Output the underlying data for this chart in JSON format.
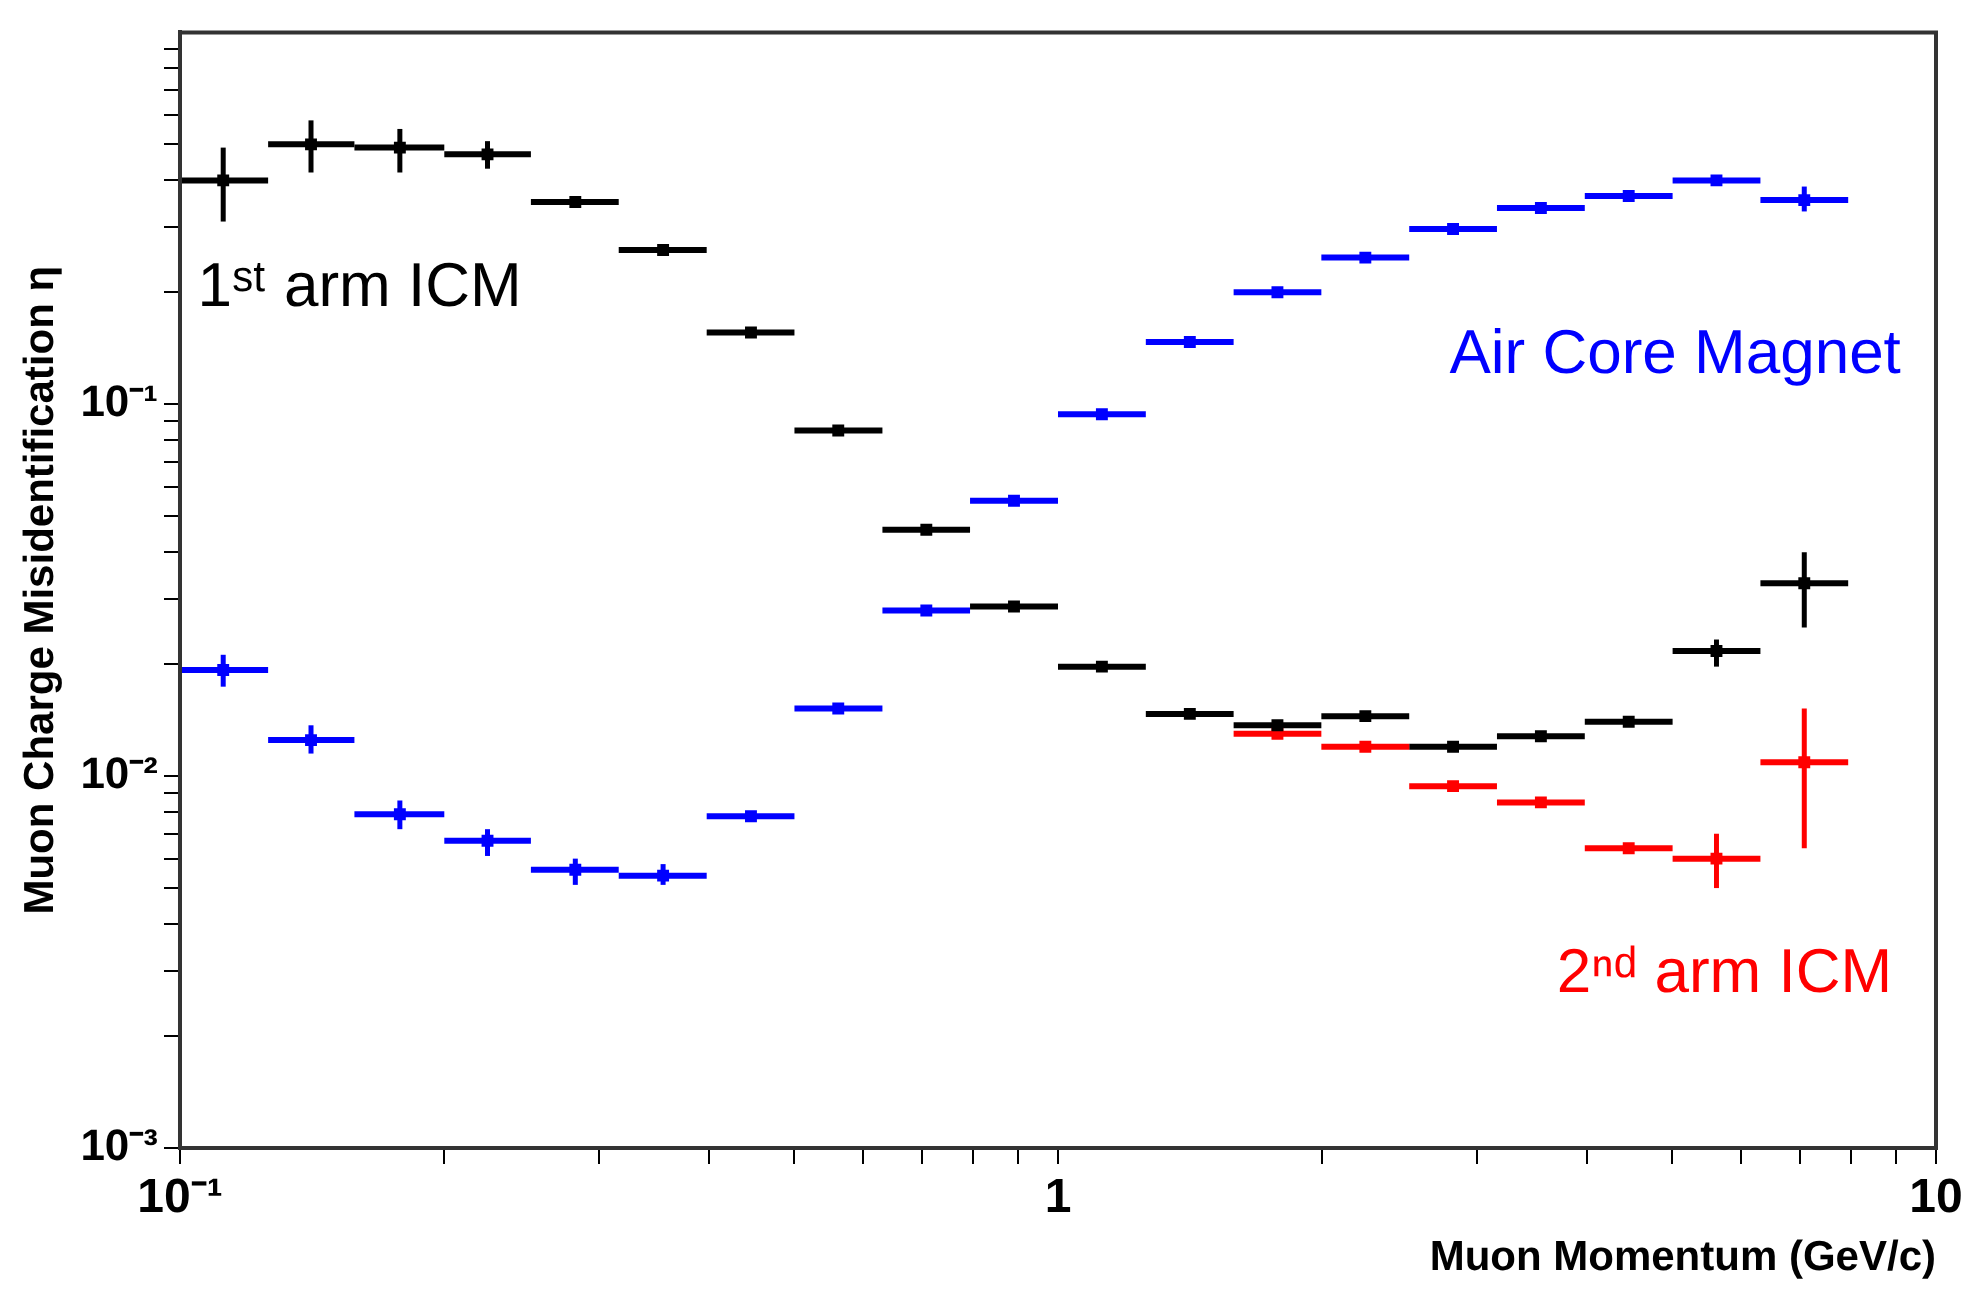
{
  "chart_data": {
    "type": "scatter",
    "xlabel": "Muon Momentum (GeV/c)",
    "ylabel": "Muon Charge Misidentification η",
    "log": "xy",
    "grid": false,
    "legend": false,
    "marker": "square",
    "xlim": [
      0.1,
      10
    ],
    "ylim": [
      0.001,
      1
    ],
    "xticks": [
      {
        "value": 0.1,
        "label": "10⁻¹"
      },
      {
        "value": 0.2,
        "label": null
      },
      {
        "value": 0.3,
        "label": null
      },
      {
        "value": 0.4,
        "label": null
      },
      {
        "value": 0.5,
        "label": null
      },
      {
        "value": 0.6,
        "label": null
      },
      {
        "value": 0.7,
        "label": null
      },
      {
        "value": 0.8,
        "label": null
      },
      {
        "value": 0.9,
        "label": null
      },
      1,
      {
        "value": 2,
        "label": null
      },
      {
        "value": 3,
        "label": null
      },
      {
        "value": 4,
        "label": null
      },
      {
        "value": 5,
        "label": null
      },
      {
        "value": 6,
        "label": null
      },
      {
        "value": 7,
        "label": null
      },
      {
        "value": 8,
        "label": null
      },
      {
        "value": 9,
        "label": null
      },
      10
    ],
    "yticks": [
      {
        "value": 0.001,
        "label": "10⁻³"
      },
      {
        "value": 0.002,
        "label": null
      },
      {
        "value": 0.003,
        "label": null
      },
      {
        "value": 0.004,
        "label": null
      },
      {
        "value": 0.005,
        "label": null
      },
      {
        "value": 0.006,
        "label": null
      },
      {
        "value": 0.007,
        "label": null
      },
      {
        "value": 0.008,
        "label": null
      },
      {
        "value": 0.009,
        "label": null
      },
      {
        "value": 0.01,
        "label": "10⁻²"
      },
      {
        "value": 0.02,
        "label": null
      },
      {
        "value": 0.03,
        "label": null
      },
      {
        "value": 0.04,
        "label": null
      },
      {
        "value": 0.05,
        "label": null
      },
      {
        "value": 0.06,
        "label": null
      },
      {
        "value": 0.07,
        "label": null
      },
      {
        "value": 0.08,
        "label": null
      },
      {
        "value": 0.09,
        "label": null
      },
      {
        "value": 0.1,
        "label": "10⁻¹"
      },
      {
        "value": 0.2,
        "label": null
      },
      {
        "value": 0.3,
        "label": null
      },
      {
        "value": 0.4,
        "label": null
      },
      {
        "value": 0.5,
        "label": null
      },
      {
        "value": 0.6,
        "label": null
      },
      {
        "value": 0.7,
        "label": null
      },
      {
        "value": 0.8,
        "label": null
      },
      {
        "value": 0.9,
        "label": null
      }
    ],
    "x": [
      0.112,
      0.141,
      0.178,
      0.224,
      0.282,
      0.355,
      0.447,
      0.562,
      0.708,
      0.891,
      1.122,
      1.413,
      1.778,
      2.239,
      2.818,
      3.548,
      4.467,
      5.623,
      7.079
    ],
    "series": [
      {
        "name": "1ˢᵗ arm ICM",
        "color": "#000000",
        "values": [
          0.4,
          0.5,
          0.49,
          0.47,
          0.35,
          0.26,
          0.156,
          0.085,
          0.046,
          0.0286,
          0.0197,
          0.0147,
          0.0137,
          0.0145,
          0.012,
          0.0128,
          0.014,
          0.0217,
          0.033
        ],
        "errors": [
          [
            0.31,
            0.49
          ],
          [
            0.42,
            0.58
          ],
          [
            0.42,
            0.55
          ],
          [
            0.43,
            0.51
          ],
          null,
          null,
          null,
          null,
          null,
          null,
          null,
          null,
          null,
          null,
          null,
          null,
          null,
          [
            0.0197,
            0.0233
          ],
          [
            0.0251,
            0.04
          ]
        ],
        "xerrors": [
          [
            0.1,
            0.126
          ],
          [
            0.126,
            0.158
          ],
          [
            0.158,
            0.2
          ],
          [
            0.2,
            0.251
          ],
          [
            0.251,
            0.316
          ],
          [
            0.316,
            0.398
          ],
          [
            0.398,
            0.501
          ],
          [
            0.501,
            0.631
          ],
          [
            0.631,
            0.794
          ],
          [
            0.794,
            1
          ],
          [
            1,
            1.259
          ],
          [
            1.259,
            1.585
          ],
          [
            1.585,
            1.995
          ],
          [
            1.995,
            2.512
          ],
          [
            2.512,
            3.162
          ],
          [
            3.162,
            3.981
          ],
          [
            3.981,
            5.012
          ],
          [
            5.012,
            6.31
          ],
          [
            6.31,
            7.943
          ]
        ]
      },
      {
        "name": "Air Core Magnet",
        "color": "#0000ff",
        "values": [
          0.0193,
          0.0125,
          0.0079,
          0.0067,
          0.0056,
          0.0054,
          0.0078,
          0.0152,
          0.0279,
          0.055,
          0.094,
          0.147,
          0.2,
          0.248,
          0.296,
          0.337,
          0.363,
          0.4,
          0.354
        ],
        "errors": [
          [
            0.0174,
            0.0212
          ],
          [
            0.0115,
            0.0137
          ],
          [
            0.0072,
            0.0086
          ],
          [
            0.0061,
            0.0072
          ],
          [
            0.0051,
            0.006
          ],
          [
            0.0051,
            0.0058
          ],
          null,
          null,
          null,
          null,
          null,
          null,
          null,
          null,
          null,
          null,
          null,
          null,
          [
            0.33,
            0.385
          ]
        ],
        "xerrors": [
          [
            0.1,
            0.126
          ],
          [
            0.126,
            0.158
          ],
          [
            0.158,
            0.2
          ],
          [
            0.2,
            0.251
          ],
          [
            0.251,
            0.316
          ],
          [
            0.316,
            0.398
          ],
          [
            0.398,
            0.501
          ],
          [
            0.501,
            0.631
          ],
          [
            0.631,
            0.794
          ],
          [
            0.794,
            1
          ],
          [
            1,
            1.259
          ],
          [
            1.259,
            1.585
          ],
          [
            1.585,
            1.995
          ],
          [
            1.995,
            2.512
          ],
          [
            2.512,
            3.162
          ],
          [
            3.162,
            3.981
          ],
          [
            3.981,
            5.012
          ],
          [
            5.012,
            6.31
          ],
          [
            6.31,
            7.943
          ]
        ]
      },
      {
        "name": "2ⁿᵈ arm ICM",
        "color": "#ff0000",
        "x": [
          1.778,
          2.239,
          2.818,
          3.548,
          4.467,
          5.623,
          7.079
        ],
        "values": [
          0.013,
          0.012,
          0.0094,
          0.0085,
          0.0064,
          0.006,
          0.0109
        ],
        "errors": [
          null,
          null,
          null,
          null,
          null,
          [
            0.005,
            0.007
          ],
          [
            0.0064,
            0.0152
          ]
        ],
        "xerrors": [
          [
            1.585,
            1.995
          ],
          [
            1.995,
            2.512
          ],
          [
            2.512,
            3.162
          ],
          [
            3.162,
            3.981
          ],
          [
            3.981,
            5.012
          ],
          [
            5.012,
            6.31
          ],
          [
            6.31,
            7.943
          ]
        ]
      }
    ]
  }
}
